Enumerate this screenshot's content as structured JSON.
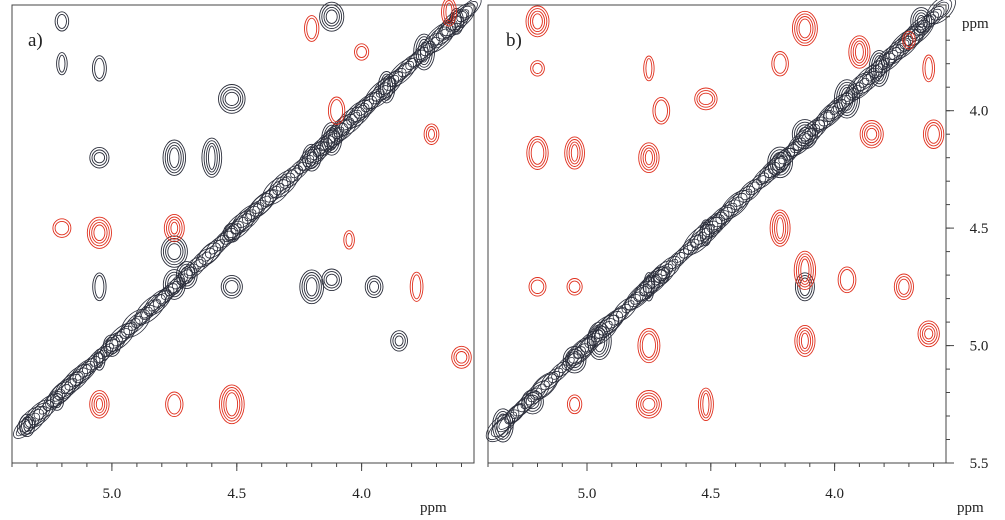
{
  "chart_data": [
    {
      "type": "2D NMR contour spectrum",
      "panel_label": "a)",
      "xlabel": "ppm",
      "ylabel": "",
      "xlim": [
        5.4,
        3.55
      ],
      "ylim": [
        3.55,
        5.5
      ],
      "x_ticks": [
        "5.0",
        "4.5",
        "4.0"
      ],
      "y_ticks": [],
      "colors": {
        "positive": "#2a2d3a",
        "negative": "#e0301e"
      },
      "peaks": [
        {
          "x": 5.34,
          "y": 5.34,
          "s": "pos"
        },
        {
          "x": 5.22,
          "y": 5.24,
          "s": "pos"
        },
        {
          "x": 5.05,
          "y": 5.06,
          "s": "pos"
        },
        {
          "x": 5.0,
          "y": 5.0,
          "s": "pos"
        },
        {
          "x": 4.75,
          "y": 4.74,
          "s": "pos"
        },
        {
          "x": 4.7,
          "y": 4.7,
          "s": "pos"
        },
        {
          "x": 4.52,
          "y": 4.52,
          "s": "pos"
        },
        {
          "x": 4.2,
          "y": 4.2,
          "s": "pos"
        },
        {
          "x": 4.12,
          "y": 4.12,
          "s": "pos"
        },
        {
          "x": 3.9,
          "y": 3.9,
          "s": "pos"
        },
        {
          "x": 3.75,
          "y": 3.75,
          "s": "pos"
        },
        {
          "x": 3.62,
          "y": 3.62,
          "s": "pos"
        },
        {
          "x": 5.2,
          "y": 3.62,
          "s": "pos"
        },
        {
          "x": 5.05,
          "y": 3.82,
          "s": "pos"
        },
        {
          "x": 5.2,
          "y": 3.8,
          "s": "pos"
        },
        {
          "x": 5.05,
          "y": 4.2,
          "s": "pos"
        },
        {
          "x": 4.75,
          "y": 4.2,
          "s": "pos"
        },
        {
          "x": 4.6,
          "y": 4.2,
          "s": "pos"
        },
        {
          "x": 4.52,
          "y": 3.95,
          "s": "pos"
        },
        {
          "x": 5.05,
          "y": 4.75,
          "s": "pos"
        },
        {
          "x": 4.75,
          "y": 4.6,
          "s": "pos"
        },
        {
          "x": 4.52,
          "y": 4.75,
          "s": "pos"
        },
        {
          "x": 4.2,
          "y": 4.75,
          "s": "pos"
        },
        {
          "x": 4.12,
          "y": 4.72,
          "s": "pos"
        },
        {
          "x": 3.95,
          "y": 4.75,
          "s": "pos"
        },
        {
          "x": 3.85,
          "y": 4.98,
          "s": "pos"
        },
        {
          "x": 4.12,
          "y": 3.6,
          "s": "pos"
        },
        {
          "x": 5.2,
          "y": 4.5,
          "s": "neg"
        },
        {
          "x": 5.05,
          "y": 4.52,
          "s": "neg"
        },
        {
          "x": 4.75,
          "y": 4.5,
          "s": "neg"
        },
        {
          "x": 4.1,
          "y": 4.0,
          "s": "neg"
        },
        {
          "x": 3.72,
          "y": 4.1,
          "s": "neg"
        },
        {
          "x": 3.78,
          "y": 4.75,
          "s": "neg"
        },
        {
          "x": 4.05,
          "y": 4.55,
          "s": "neg"
        },
        {
          "x": 3.6,
          "y": 5.05,
          "s": "neg"
        },
        {
          "x": 4.0,
          "y": 3.75,
          "s": "neg"
        },
        {
          "x": 3.65,
          "y": 3.58,
          "s": "neg"
        },
        {
          "x": 4.52,
          "y": 5.25,
          "s": "neg"
        },
        {
          "x": 4.75,
          "y": 5.25,
          "s": "neg"
        },
        {
          "x": 5.05,
          "y": 5.25,
          "s": "neg"
        },
        {
          "x": 4.2,
          "y": 3.65,
          "s": "neg"
        }
      ]
    },
    {
      "type": "2D NMR contour spectrum",
      "panel_label": "b)",
      "xlabel": "ppm",
      "ylabel": "ppm",
      "xlim": [
        5.4,
        3.55
      ],
      "ylim": [
        3.55,
        5.5
      ],
      "x_ticks": [
        "5.0",
        "4.5",
        "4.0"
      ],
      "y_ticks": [
        "4.0",
        "4.5",
        "5.0",
        "5.5"
      ],
      "colors": {
        "positive": "#2a2d3a",
        "negative": "#e0301e"
      },
      "peaks": [
        {
          "x": 5.34,
          "y": 5.34,
          "s": "pos"
        },
        {
          "x": 5.22,
          "y": 5.24,
          "s": "pos"
        },
        {
          "x": 5.05,
          "y": 5.06,
          "s": "pos"
        },
        {
          "x": 4.95,
          "y": 4.98,
          "s": "pos"
        },
        {
          "x": 4.75,
          "y": 4.75,
          "s": "pos"
        },
        {
          "x": 4.7,
          "y": 4.7,
          "s": "pos"
        },
        {
          "x": 4.52,
          "y": 4.52,
          "s": "pos"
        },
        {
          "x": 4.22,
          "y": 4.22,
          "s": "pos"
        },
        {
          "x": 4.12,
          "y": 4.1,
          "s": "pos"
        },
        {
          "x": 3.95,
          "y": 3.95,
          "s": "pos"
        },
        {
          "x": 3.82,
          "y": 3.82,
          "s": "pos"
        },
        {
          "x": 3.65,
          "y": 3.62,
          "s": "pos"
        },
        {
          "x": 4.12,
          "y": 4.75,
          "s": "pos"
        },
        {
          "x": 5.2,
          "y": 3.62,
          "s": "neg"
        },
        {
          "x": 5.2,
          "y": 3.82,
          "s": "neg"
        },
        {
          "x": 5.2,
          "y": 4.18,
          "s": "neg"
        },
        {
          "x": 5.05,
          "y": 4.18,
          "s": "neg"
        },
        {
          "x": 5.05,
          "y": 4.75,
          "s": "neg"
        },
        {
          "x": 5.2,
          "y": 4.75,
          "s": "neg"
        },
        {
          "x": 4.75,
          "y": 4.2,
          "s": "neg"
        },
        {
          "x": 4.75,
          "y": 3.82,
          "s": "neg"
        },
        {
          "x": 4.7,
          "y": 4.0,
          "s": "neg"
        },
        {
          "x": 4.52,
          "y": 3.95,
          "s": "neg"
        },
        {
          "x": 4.75,
          "y": 5.0,
          "s": "neg"
        },
        {
          "x": 4.52,
          "y": 5.25,
          "s": "neg"
        },
        {
          "x": 4.75,
          "y": 5.25,
          "s": "neg"
        },
        {
          "x": 5.05,
          "y": 5.25,
          "s": "neg"
        },
        {
          "x": 4.12,
          "y": 3.65,
          "s": "neg"
        },
        {
          "x": 4.22,
          "y": 3.8,
          "s": "neg"
        },
        {
          "x": 4.22,
          "y": 4.5,
          "s": "neg"
        },
        {
          "x": 4.12,
          "y": 4.98,
          "s": "neg"
        },
        {
          "x": 4.12,
          "y": 4.68,
          "s": "neg"
        },
        {
          "x": 3.95,
          "y": 4.72,
          "s": "neg"
        },
        {
          "x": 3.72,
          "y": 4.75,
          "s": "neg"
        },
        {
          "x": 3.85,
          "y": 4.1,
          "s": "neg"
        },
        {
          "x": 3.9,
          "y": 3.75,
          "s": "neg"
        },
        {
          "x": 3.62,
          "y": 3.82,
          "s": "neg"
        },
        {
          "x": 3.6,
          "y": 4.1,
          "s": "neg"
        },
        {
          "x": 3.7,
          "y": 3.7,
          "s": "neg"
        },
        {
          "x": 3.62,
          "y": 4.95,
          "s": "neg"
        }
      ]
    }
  ]
}
